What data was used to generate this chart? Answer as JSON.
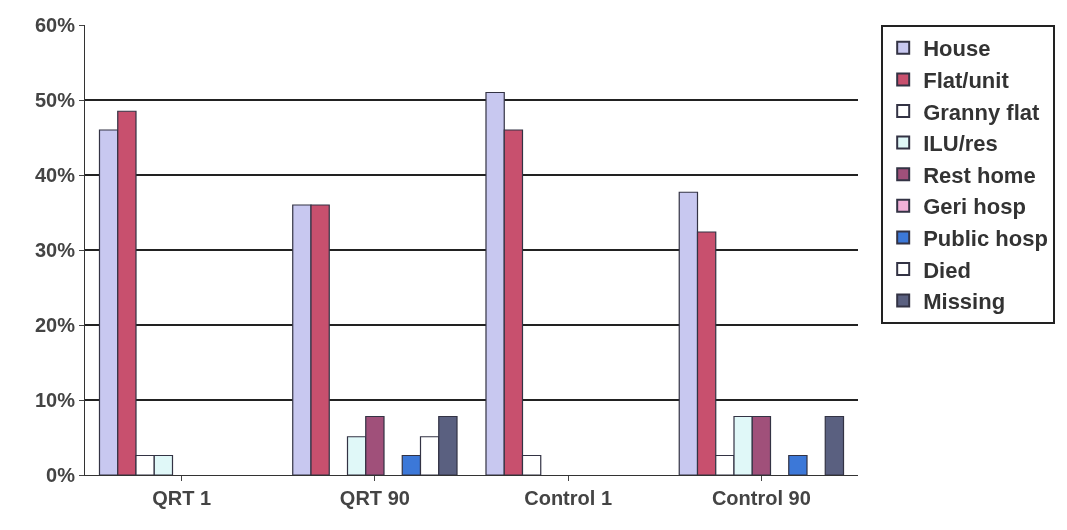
{
  "chart_data": {
    "type": "bar",
    "categories": [
      "QRT 1",
      "QRT 90",
      "Control 1",
      "Control 90"
    ],
    "series": [
      {
        "name": "House",
        "color": "#c8c8f0",
        "values": [
          46,
          36,
          51,
          37.7
        ]
      },
      {
        "name": "Flat/unit",
        "color": "#c8506e",
        "values": [
          48.5,
          36,
          46,
          32.4
        ]
      },
      {
        "name": "Granny flat",
        "color": "#ffffff",
        "values": [
          2.6,
          0,
          2.6,
          2.6
        ]
      },
      {
        "name": "ILU/res",
        "color": "#e0f8f8",
        "values": [
          2.6,
          5.1,
          0,
          7.8
        ]
      },
      {
        "name": "Rest home",
        "color": "#a0507a",
        "values": [
          0,
          7.8,
          0,
          7.8
        ]
      },
      {
        "name": "Geri hosp",
        "color": "#f0b0d8",
        "values": [
          0,
          0,
          0,
          0
        ]
      },
      {
        "name": "Public hosp",
        "color": "#3c78d8",
        "values": [
          0,
          2.6,
          0,
          2.6
        ]
      },
      {
        "name": "Died",
        "color": "#ffffff",
        "values": [
          0,
          5.1,
          0,
          0
        ]
      },
      {
        "name": "Missing",
        "color": "#5a6080",
        "values": [
          0,
          7.8,
          0,
          7.8
        ]
      }
    ],
    "ylim": [
      0,
      60
    ],
    "yticks": [
      {
        "value": 0,
        "label": "0%"
      },
      {
        "value": 10,
        "label": "10%"
      },
      {
        "value": 20,
        "label": "20%"
      },
      {
        "value": 30,
        "label": "30%"
      },
      {
        "value": 40,
        "label": "40%"
      },
      {
        "value": 50,
        "label": "50%"
      },
      {
        "value": 60,
        "label": "60%"
      }
    ],
    "grid": "y",
    "legend": "right"
  }
}
